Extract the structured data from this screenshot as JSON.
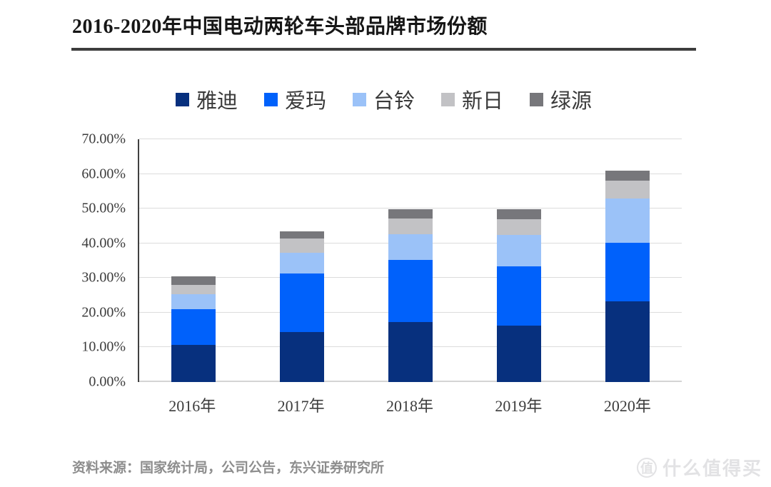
{
  "title": "2016-2020年中国电动两轮车头部品牌市场份额",
  "source": "资料来源：国家统计局，公司公告，东兴证券研究所",
  "watermark": {
    "badge": "值",
    "text": "什么值得买"
  },
  "chart_data": {
    "type": "bar",
    "stacked": true,
    "title": "2016-2020年中国电动两轮车头部品牌市场份额",
    "categories": [
      "2016年",
      "2017年",
      "2018年",
      "2019年",
      "2020年"
    ],
    "series": [
      {
        "name": "雅迪",
        "color": "#07307E",
        "values": [
          10.7,
          14.4,
          17.4,
          16.3,
          23.2
        ]
      },
      {
        "name": "爱玛",
        "color": "#0061FB",
        "values": [
          10.4,
          17.0,
          17.8,
          17.0,
          16.9
        ]
      },
      {
        "name": "台铃",
        "color": "#9BC2F8",
        "values": [
          4.2,
          5.8,
          7.4,
          9.1,
          12.8
        ]
      },
      {
        "name": "新日",
        "color": "#C2C2C5",
        "values": [
          2.8,
          4.1,
          4.6,
          4.6,
          5.1
        ]
      },
      {
        "name": "绿源",
        "color": "#77777B",
        "values": [
          2.3,
          2.1,
          2.6,
          2.9,
          3.0
        ]
      }
    ],
    "totals": [
      30.4,
      43.4,
      49.8,
      49.9,
      61.0
    ],
    "xlabel": "",
    "ylabel": "",
    "ylim": [
      0,
      70
    ],
    "yticks": [
      "0.00%",
      "10.00%",
      "20.00%",
      "30.00%",
      "40.00%",
      "50.00%",
      "60.00%",
      "70.00%"
    ],
    "ytick_values": [
      0,
      10,
      20,
      30,
      40,
      50,
      60,
      70
    ],
    "grid": true,
    "legend_position": "top",
    "colors": {
      "gridline": "#DCDCDC",
      "axis_line": "#404040",
      "title_rule": "#3D3D3D",
      "tick_text": "#3C3C3C",
      "source_text": "#8D8D8D",
      "watermark": "#E2E2E4"
    }
  }
}
